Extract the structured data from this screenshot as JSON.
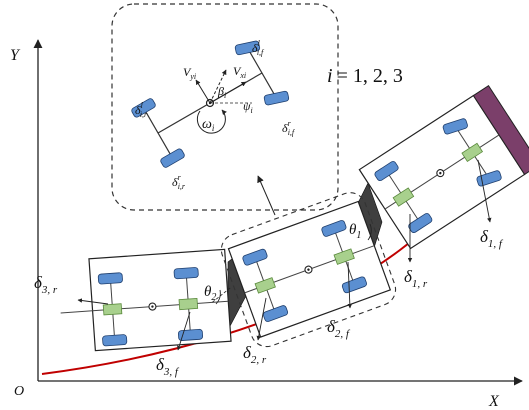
{
  "axes": {
    "x_label": "X",
    "y_label": "Y",
    "origin_label": "O"
  },
  "index_note": {
    "lhs": "i",
    "rhs": "= 1, 2, 3"
  },
  "inset": {
    "vx": {
      "base": "V",
      "sub": "xi"
    },
    "vy": {
      "base": "V",
      "sub": "yi"
    },
    "beta": {
      "base": "β",
      "sub": "i"
    },
    "psi": {
      "base": "ψ",
      "sub": "i"
    },
    "omega": {
      "base": "ω",
      "sub": "i"
    },
    "delta_if_l": {
      "base": "δ",
      "sup": "l",
      "sub": "i,f"
    },
    "delta_if_r": {
      "base": "δ",
      "sup": "r",
      "sub": "i,f"
    },
    "delta_ir_l": {
      "base": "δ",
      "sup": "l",
      "sub": "i,r"
    },
    "delta_ir_r": {
      "base": "δ",
      "sup": "r",
      "sub": "i,r"
    }
  },
  "labels": {
    "theta1": {
      "base": "θ",
      "sub": "1"
    },
    "theta2": {
      "base": "θ",
      "sub": "2"
    },
    "d1f": {
      "base": "δ",
      "sub": "1, f"
    },
    "d1r": {
      "base": "δ",
      "sub": "1, r"
    },
    "d2f": {
      "base": "δ",
      "sub": "2, f"
    },
    "d2r": {
      "base": "δ",
      "sub": "2, r"
    },
    "d3f": {
      "base": "δ",
      "sub": "3, f"
    },
    "d3r": {
      "base": "δ",
      "sub": "3, r"
    }
  },
  "colors": {
    "path": "#c00000",
    "wheel": "#5b8fd1",
    "axle_block": "#a8d08d",
    "hitch": "#3f3f3f",
    "end_cap": "#7b3f6a"
  }
}
